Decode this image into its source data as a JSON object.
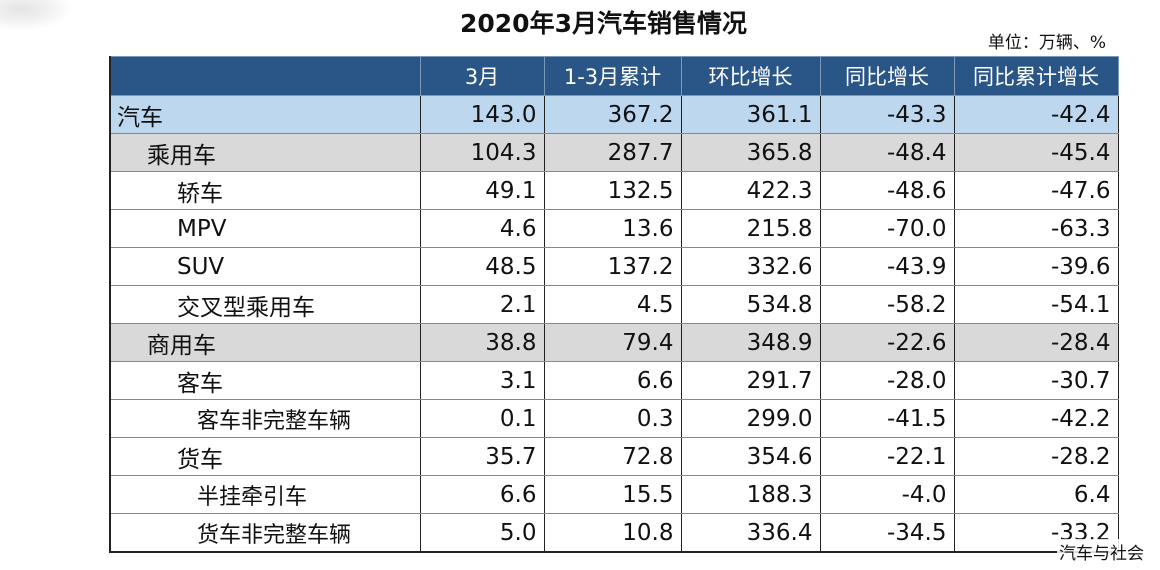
{
  "title": "2020年3月汽车销售情况",
  "unit": "单位：万辆、%",
  "headers": [
    "",
    "3月",
    "1-3月累计",
    "环比增长",
    "同比增长",
    "同比累计增长"
  ],
  "rows": [
    {
      "level": 0,
      "label": "汽车",
      "values": [
        "143.0",
        "367.2",
        "361.1",
        "-43.3",
        "-42.4"
      ]
    },
    {
      "level": 1,
      "label": "乘用车",
      "values": [
        "104.3",
        "287.7",
        "365.8",
        "-48.4",
        "-45.4"
      ]
    },
    {
      "level": 2,
      "label": "轿车",
      "values": [
        "49.1",
        "132.5",
        "422.3",
        "-48.6",
        "-47.6"
      ]
    },
    {
      "level": 2,
      "label": "MPV",
      "values": [
        "4.6",
        "13.6",
        "215.8",
        "-70.0",
        "-63.3"
      ]
    },
    {
      "level": 2,
      "label": "SUV",
      "values": [
        "48.5",
        "137.2",
        "332.6",
        "-43.9",
        "-39.6"
      ]
    },
    {
      "level": 2,
      "label": "交叉型乘用车",
      "values": [
        "2.1",
        "4.5",
        "534.8",
        "-58.2",
        "-54.1"
      ]
    },
    {
      "level": 1,
      "label": "商用车",
      "values": [
        "38.8",
        "79.4",
        "348.9",
        "-22.6",
        "-28.4"
      ]
    },
    {
      "level": 2,
      "label": "客车",
      "values": [
        "3.1",
        "6.6",
        "291.7",
        "-28.0",
        "-30.7"
      ]
    },
    {
      "level": 3,
      "label": "客车非完整车辆",
      "values": [
        "0.1",
        "0.3",
        "299.0",
        "-41.5",
        "-42.2"
      ]
    },
    {
      "level": 2,
      "label": "货车",
      "values": [
        "35.7",
        "72.8",
        "354.6",
        "-22.1",
        "-28.2"
      ]
    },
    {
      "level": 3,
      "label": "半挂牵引车",
      "values": [
        "6.6",
        "15.5",
        "188.3",
        "-4.0",
        "6.4"
      ]
    },
    {
      "level": 3,
      "label": "货车非完整车辆",
      "values": [
        "5.0",
        "10.8",
        "336.4",
        "-34.5",
        "-33.2"
      ]
    }
  ],
  "watermark": "汽车与社会",
  "colors": {
    "header_bg": "#2a5687",
    "total_row_bg": "#bdd7ee",
    "subtotal_row_bg": "#d9d9d9"
  }
}
